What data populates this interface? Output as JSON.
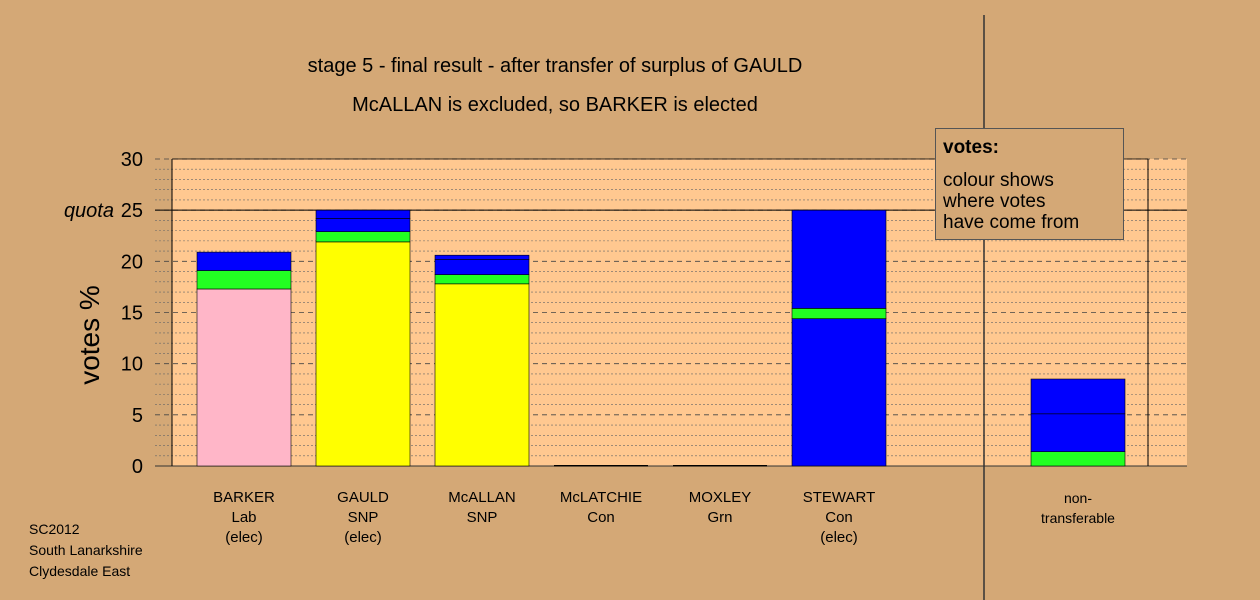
{
  "chart_data": {
    "type": "bar",
    "stacked": true,
    "title": "stage 5 - final result - after transfer of surplus of GAULD",
    "subtitle": "McALLAN is excluded, so BARKER is elected",
    "ylabel": "votes %",
    "xlabel": "",
    "ylim": [
      0,
      30
    ],
    "yticks": [
      0,
      5,
      10,
      15,
      20,
      25,
      30
    ],
    "quota": 25,
    "quota_label": "quota",
    "grid": true,
    "categories": [
      {
        "name": "BARKER",
        "party": "Lab",
        "status": "(elec)"
      },
      {
        "name": "GAULD",
        "party": "SNP",
        "status": "(elec)"
      },
      {
        "name": "McALLAN",
        "party": "SNP",
        "status": ""
      },
      {
        "name": "McLATCHIE",
        "party": "Con",
        "status": ""
      },
      {
        "name": "MOXLEY",
        "party": "Grn",
        "status": ""
      },
      {
        "name": "STEWART",
        "party": "Con",
        "status": "(elec)"
      }
    ],
    "non_transferable_label": [
      "non-",
      "transferable"
    ],
    "series_colors": {
      "Lab": "#ffb6c8",
      "SNP": "#ffff00",
      "Grn": "#22ff22",
      "Con": "#0000ff"
    },
    "bars": [
      {
        "candidate": "BARKER",
        "segments": [
          {
            "from": "Lab",
            "value": 17.3
          },
          {
            "from": "Grn",
            "value": 1.8
          },
          {
            "from": "Con",
            "value": 1.8
          }
        ]
      },
      {
        "candidate": "GAULD",
        "segments": [
          {
            "from": "SNP",
            "value": 21.9
          },
          {
            "from": "Grn",
            "value": 1.0
          },
          {
            "from": "Con",
            "value": 1.3
          },
          {
            "from": "Con",
            "value": 0.8
          }
        ]
      },
      {
        "candidate": "McALLAN",
        "segments": [
          {
            "from": "SNP",
            "value": 17.8
          },
          {
            "from": "Grn",
            "value": 0.9
          },
          {
            "from": "Con",
            "value": 1.5
          },
          {
            "from": "Con",
            "value": 0.4
          }
        ]
      },
      {
        "candidate": "McLATCHIE",
        "segments": []
      },
      {
        "candidate": "MOXLEY",
        "segments": []
      },
      {
        "candidate": "STEWART",
        "segments": [
          {
            "from": "Con",
            "value": 14.4
          },
          {
            "from": "Grn",
            "value": 1.0
          },
          {
            "from": "Con",
            "value": 9.6
          }
        ]
      },
      {
        "candidate": "non-transferable",
        "segments": [
          {
            "from": "Grn",
            "value": 1.4
          },
          {
            "from": "Con",
            "value": 3.7
          },
          {
            "from": "Con",
            "value": 3.4
          }
        ]
      }
    ]
  },
  "legend": {
    "heading": "votes:",
    "lines": [
      "colour shows",
      "where votes",
      "have come from"
    ]
  },
  "footer": [
    "SC2012",
    "South Lanarkshire",
    "Clydesdale East"
  ]
}
